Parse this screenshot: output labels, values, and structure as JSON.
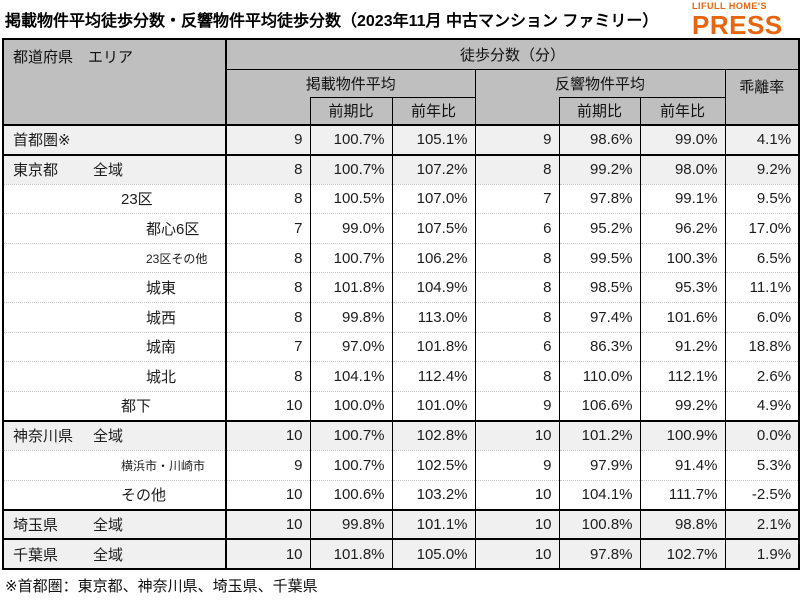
{
  "title": "掲載物件平均徒歩分数・反響物件平均徒歩分数（2023年11月 中古マンション ファミリー）",
  "logo": {
    "top": "LIFULL HOME'S",
    "bottom": "PRESS",
    "color": "#E8650F"
  },
  "colors": {
    "header_bg": "#BFBFBF",
    "shaded_row_bg": "#F0F0F0",
    "border": "#000000",
    "logo_orange": "#E8650F"
  },
  "footnote": "※首都圏：東京都、神奈川県、埼玉県、千葉県",
  "table": {
    "header": {
      "corner": "都道府県　エリア",
      "group_title": "徒歩分数（分）",
      "listed_group": "掲載物件平均",
      "response_group": "反響物件平均",
      "deviation": "乖離率",
      "prev_period": "前期比",
      "prev_year": "前年比"
    },
    "rows": [
      {
        "pref": "首都圏※",
        "area": "",
        "indent": 0,
        "small": false,
        "shaded": true,
        "group": true,
        "values": [
          "9",
          "100.7%",
          "105.1%",
          "9",
          "98.6%",
          "99.0%",
          "4.1%"
        ]
      },
      {
        "pref": "東京都",
        "area": "全域",
        "indent": 1,
        "small": false,
        "shaded": true,
        "group": true,
        "values": [
          "8",
          "100.7%",
          "107.2%",
          "8",
          "99.2%",
          "98.0%",
          "9.2%"
        ]
      },
      {
        "pref": "",
        "area": "23区",
        "indent": 2,
        "small": false,
        "shaded": false,
        "group": false,
        "values": [
          "8",
          "100.5%",
          "107.0%",
          "7",
          "97.8%",
          "99.1%",
          "9.5%"
        ]
      },
      {
        "pref": "",
        "area": "都心6区",
        "indent": 3,
        "small": false,
        "shaded": false,
        "group": false,
        "values": [
          "7",
          "99.0%",
          "107.5%",
          "6",
          "95.2%",
          "96.2%",
          "17.0%"
        ]
      },
      {
        "pref": "",
        "area": "23区その他",
        "indent": 3,
        "small": true,
        "shaded": false,
        "group": false,
        "values": [
          "8",
          "100.7%",
          "106.2%",
          "8",
          "99.5%",
          "100.3%",
          "6.5%"
        ]
      },
      {
        "pref": "",
        "area": "城東",
        "indent": 3,
        "small": false,
        "shaded": false,
        "group": false,
        "values": [
          "8",
          "101.8%",
          "104.9%",
          "8",
          "98.5%",
          "95.3%",
          "11.1%"
        ]
      },
      {
        "pref": "",
        "area": "城西",
        "indent": 3,
        "small": false,
        "shaded": false,
        "group": false,
        "values": [
          "8",
          "99.8%",
          "113.0%",
          "8",
          "97.4%",
          "101.6%",
          "6.0%"
        ]
      },
      {
        "pref": "",
        "area": "城南",
        "indent": 3,
        "small": false,
        "shaded": false,
        "group": false,
        "values": [
          "7",
          "97.0%",
          "101.8%",
          "6",
          "86.3%",
          "91.2%",
          "18.8%"
        ]
      },
      {
        "pref": "",
        "area": "城北",
        "indent": 3,
        "small": false,
        "shaded": false,
        "group": false,
        "values": [
          "8",
          "104.1%",
          "112.4%",
          "8",
          "110.0%",
          "112.1%",
          "2.6%"
        ]
      },
      {
        "pref": "",
        "area": "都下",
        "indent": 2,
        "small": false,
        "shaded": false,
        "group": false,
        "values": [
          "10",
          "100.0%",
          "101.0%",
          "9",
          "106.6%",
          "99.2%",
          "4.9%"
        ]
      },
      {
        "pref": "神奈川県",
        "area": "全域",
        "indent": 1,
        "small": false,
        "shaded": true,
        "group": true,
        "values": [
          "10",
          "100.7%",
          "102.8%",
          "10",
          "101.2%",
          "100.9%",
          "0.0%"
        ]
      },
      {
        "pref": "",
        "area": "横浜市・川崎市",
        "indent": 2,
        "small": true,
        "shaded": false,
        "group": false,
        "values": [
          "9",
          "100.7%",
          "102.5%",
          "9",
          "97.9%",
          "91.4%",
          "5.3%"
        ]
      },
      {
        "pref": "",
        "area": "その他",
        "indent": 2,
        "small": false,
        "shaded": false,
        "group": false,
        "values": [
          "10",
          "100.6%",
          "103.2%",
          "10",
          "104.1%",
          "111.7%",
          "-2.5%"
        ]
      },
      {
        "pref": "埼玉県",
        "area": "全域",
        "indent": 1,
        "small": false,
        "shaded": true,
        "group": true,
        "values": [
          "10",
          "99.8%",
          "101.1%",
          "10",
          "100.8%",
          "98.8%",
          "2.1%"
        ]
      },
      {
        "pref": "千葉県",
        "area": "全域",
        "indent": 1,
        "small": false,
        "shaded": true,
        "group": true,
        "values": [
          "10",
          "101.8%",
          "105.0%",
          "10",
          "97.8%",
          "102.7%",
          "1.9%"
        ]
      }
    ]
  },
  "chart_data": {
    "type": "table",
    "title": "掲載物件平均徒歩分数・反響物件平均徒歩分数（2023年11月 中古マンション ファミリー）",
    "column_group": "徒歩分数（分）",
    "columns": [
      "都道府県 エリア",
      "掲載物件平均",
      "掲載 前期比",
      "掲載 前年比",
      "反響物件平均",
      "反響 前期比",
      "反響 前年比",
      "乖離率"
    ],
    "rows": [
      [
        "首都圏※",
        "9",
        "100.7%",
        "105.1%",
        "9",
        "98.6%",
        "99.0%",
        "4.1%"
      ],
      [
        "東京都 全域",
        "8",
        "100.7%",
        "107.2%",
        "8",
        "99.2%",
        "98.0%",
        "9.2%"
      ],
      [
        "東京都 23区",
        "8",
        "100.5%",
        "107.0%",
        "7",
        "97.8%",
        "99.1%",
        "9.5%"
      ],
      [
        "東京都 都心6区",
        "7",
        "99.0%",
        "107.5%",
        "6",
        "95.2%",
        "96.2%",
        "17.0%"
      ],
      [
        "東京都 23区その他",
        "8",
        "100.7%",
        "106.2%",
        "8",
        "99.5%",
        "100.3%",
        "6.5%"
      ],
      [
        "東京都 城東",
        "8",
        "101.8%",
        "104.9%",
        "8",
        "98.5%",
        "95.3%",
        "11.1%"
      ],
      [
        "東京都 城西",
        "8",
        "99.8%",
        "113.0%",
        "8",
        "97.4%",
        "101.6%",
        "6.0%"
      ],
      [
        "東京都 城南",
        "7",
        "97.0%",
        "101.8%",
        "6",
        "86.3%",
        "91.2%",
        "18.8%"
      ],
      [
        "東京都 城北",
        "8",
        "104.1%",
        "112.4%",
        "8",
        "110.0%",
        "112.1%",
        "2.6%"
      ],
      [
        "東京都 都下",
        "10",
        "100.0%",
        "101.0%",
        "9",
        "106.6%",
        "99.2%",
        "4.9%"
      ],
      [
        "神奈川県 全域",
        "10",
        "100.7%",
        "102.8%",
        "10",
        "101.2%",
        "100.9%",
        "0.0%"
      ],
      [
        "神奈川県 横浜市・川崎市",
        "9",
        "100.7%",
        "102.5%",
        "9",
        "97.9%",
        "91.4%",
        "5.3%"
      ],
      [
        "神奈川県 その他",
        "10",
        "100.6%",
        "103.2%",
        "10",
        "104.1%",
        "111.7%",
        "-2.5%"
      ],
      [
        "埼玉県 全域",
        "10",
        "99.8%",
        "101.1%",
        "10",
        "100.8%",
        "98.8%",
        "2.1%"
      ],
      [
        "千葉県 全域",
        "10",
        "101.8%",
        "105.0%",
        "10",
        "97.8%",
        "102.7%",
        "1.9%"
      ]
    ],
    "footnote": "※首都圏：東京都、神奈川県、埼玉県、千葉県"
  }
}
